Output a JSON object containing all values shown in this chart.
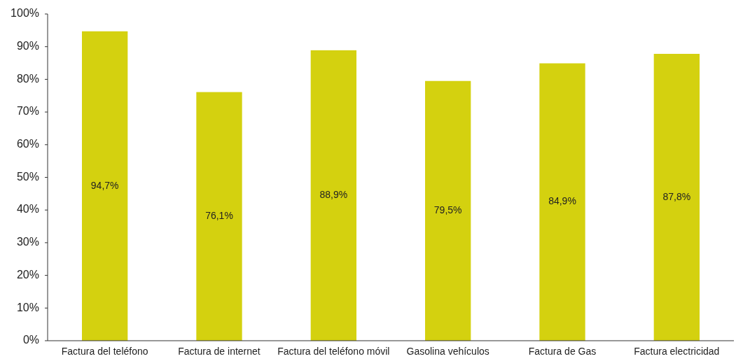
{
  "chart_data": {
    "type": "bar",
    "categories": [
      "Factura del teléfono",
      "Factura de internet",
      "Factura del teléfono móvil",
      "Gasolina vehículos",
      "Factura de Gas",
      "Factura electricidad"
    ],
    "values": [
      94.7,
      76.1,
      88.9,
      79.5,
      84.9,
      87.8
    ],
    "value_labels": [
      "94,7%",
      "76,1%",
      "88,9%",
      "79,5%",
      "84,9%",
      "87,8%"
    ],
    "color": "#d4d10f",
    "ylim": [
      0,
      100
    ],
    "yticks": [
      {
        "value": 0,
        "label": "0%"
      },
      {
        "value": 10,
        "label": "10%"
      },
      {
        "value": 20,
        "label": "20%"
      },
      {
        "value": 30,
        "label": "30%"
      },
      {
        "value": 40,
        "label": "40%"
      },
      {
        "value": 50,
        "label": "50%"
      },
      {
        "value": 60,
        "label": "60%"
      },
      {
        "value": 70,
        "label": "70%"
      },
      {
        "value": 80,
        "label": "80%"
      },
      {
        "value": 90,
        "label": "90%"
      },
      {
        "value": 100,
        "label": "100%"
      }
    ],
    "grid": false
  }
}
